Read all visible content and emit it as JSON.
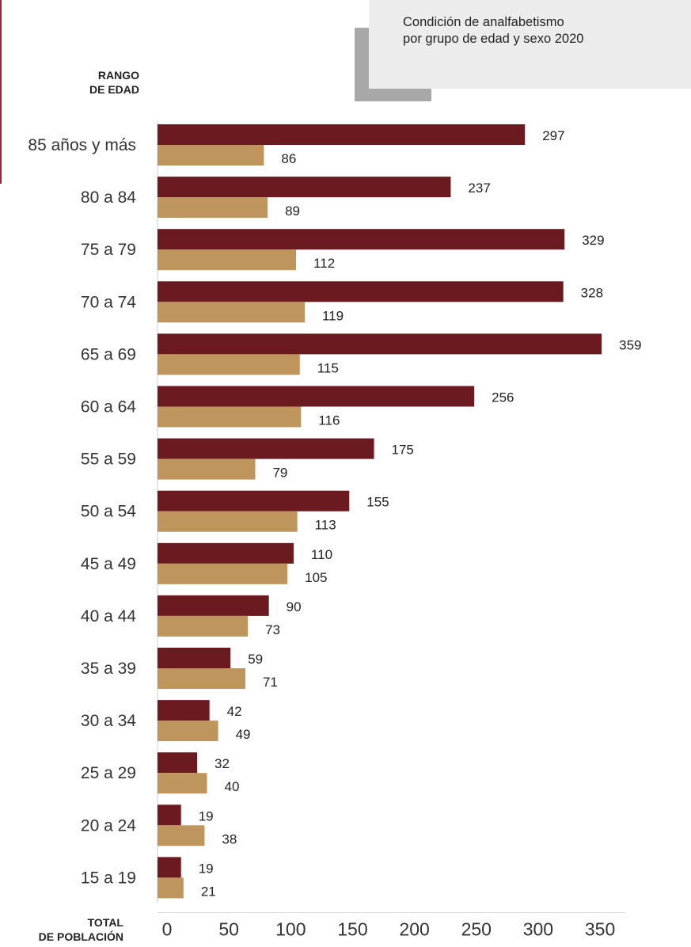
{
  "title": {
    "line1": "Condición de analfabetismo",
    "line2": "por grupo de edad y sexo 2020"
  },
  "y_header": {
    "line1": "RANGO",
    "line2": "DE EDAD"
  },
  "x_header": {
    "line1": "TOTAL",
    "line2": "DE POBLACIÓN"
  },
  "colors": {
    "series_a": "#6b1a20",
    "series_b": "#bf955e",
    "accent": "#9a2433"
  },
  "chart_data": {
    "type": "bar",
    "orientation": "horizontal",
    "categories": [
      "85 años y más",
      "80 a 84",
      "75 a 79",
      "70 a 74",
      "65 a 69",
      "60 a 64",
      "55 a 59",
      "50 a 54",
      "45 a 49",
      "40 a 44",
      "35 a 39",
      "30 a 34",
      "25 a 29",
      "20 a 24",
      "15 a 19"
    ],
    "series": [
      {
        "values": [
          297,
          237,
          329,
          328,
          359,
          256,
          175,
          155,
          110,
          90,
          59,
          42,
          32,
          19,
          19
        ],
        "color": "#6b1a20"
      },
      {
        "values": [
          86,
          89,
          112,
          119,
          115,
          116,
          79,
          113,
          105,
          73,
          71,
          49,
          40,
          38,
          21
        ],
        "color": "#bf955e"
      }
    ],
    "xticks": [
      0,
      50,
      100,
      150,
      200,
      250,
      300,
      350
    ],
    "xlim": [
      0,
      378
    ],
    "grid": false,
    "legend": "none"
  }
}
